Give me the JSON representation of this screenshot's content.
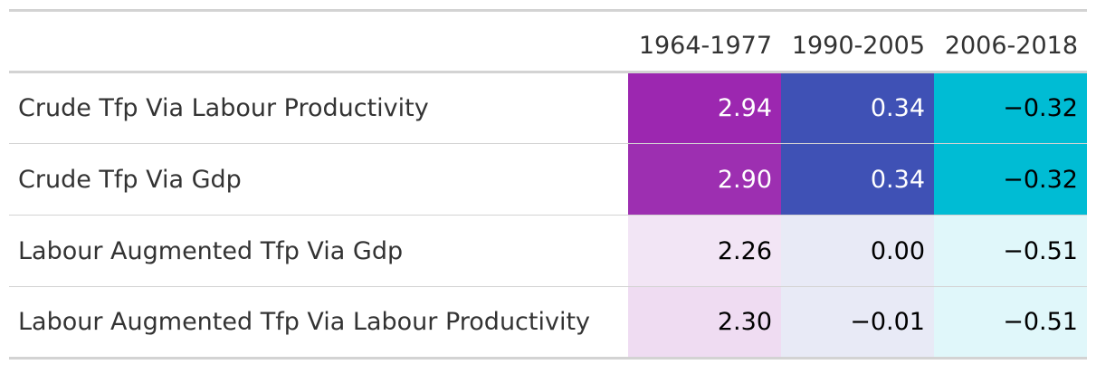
{
  "chart_data": {
    "type": "table",
    "columns": [
      "",
      "1964-1977",
      "1990-2005",
      "2006-2018"
    ],
    "rows": [
      {
        "label": "Crude Tfp Via Labour Productivity",
        "cells": [
          {
            "text": "2.94",
            "value": 2.94,
            "bg": "#9c27b0",
            "fg": "#ffffff"
          },
          {
            "text": "0.34",
            "value": 0.34,
            "bg": "#3f51b5",
            "fg": "#ffffff"
          },
          {
            "text": "−0.32",
            "value": -0.32,
            "bg": "#00bcd4",
            "fg": "#000000"
          }
        ]
      },
      {
        "label": "Crude Tfp Via Gdp",
        "cells": [
          {
            "text": "2.90",
            "value": 2.9,
            "bg": "#9d2fb1",
            "fg": "#ffffff"
          },
          {
            "text": "0.34",
            "value": 0.34,
            "bg": "#3f51b5",
            "fg": "#ffffff"
          },
          {
            "text": "−0.32",
            "value": -0.32,
            "bg": "#00bcd4",
            "fg": "#000000"
          }
        ]
      },
      {
        "label": "Labour Augmented Tfp Via Gdp",
        "cells": [
          {
            "text": "2.26",
            "value": 2.26,
            "bg": "#f2e5f5",
            "fg": "#000000"
          },
          {
            "text": "0.00",
            "value": 0.0,
            "bg": "#e8eaf6",
            "fg": "#000000"
          },
          {
            "text": "−0.51",
            "value": -0.51,
            "bg": "#e0f7fa",
            "fg": "#000000"
          }
        ]
      },
      {
        "label": "Labour Augmented Tfp Via Labour Productivity",
        "cells": [
          {
            "text": "2.30",
            "value": 2.3,
            "bg": "#efdcf2",
            "fg": "#000000"
          },
          {
            "text": "−0.01",
            "value": -0.01,
            "bg": "#e8eaf6",
            "fg": "#000000"
          },
          {
            "text": "−0.51",
            "value": -0.51,
            "bg": "#e0f7fa",
            "fg": "#000000"
          }
        ]
      }
    ]
  }
}
